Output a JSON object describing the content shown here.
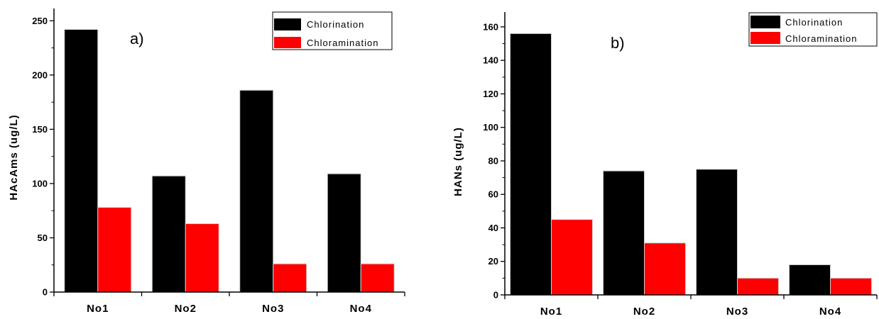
{
  "chart_data": [
    {
      "type": "bar",
      "panel_label": "a)",
      "categories": [
        "No1",
        "No2",
        "No3",
        "No4"
      ],
      "series": [
        {
          "name": "Chlorination",
          "color": "#000000",
          "values": [
            242,
            107,
            186,
            109
          ]
        },
        {
          "name": "Chloramination",
          "color": "#ff0000",
          "values": [
            78,
            63,
            26,
            26
          ]
        }
      ],
      "title": "",
      "xlabel": "",
      "ylabel": "HAcAms (ug/L)",
      "ylim": [
        0,
        260
      ],
      "yticks": [
        0,
        50,
        100,
        150,
        200,
        250
      ],
      "grid": false,
      "legend_position": "top-right"
    },
    {
      "type": "bar",
      "panel_label": "b)",
      "categories": [
        "No1",
        "No2",
        "No3",
        "No4"
      ],
      "series": [
        {
          "name": "Chlorination",
          "color": "#000000",
          "values": [
            156,
            74,
            75,
            18
          ]
        },
        {
          "name": "Chloramination",
          "color": "#ff0000",
          "values": [
            45,
            31,
            10,
            10
          ]
        }
      ],
      "title": "",
      "xlabel": "",
      "ylabel": "HANs (ug/L)",
      "ylim": [
        0,
        168
      ],
      "yticks": [
        0,
        20,
        40,
        60,
        80,
        100,
        120,
        140,
        160
      ],
      "grid": false,
      "legend_position": "top-right"
    }
  ]
}
